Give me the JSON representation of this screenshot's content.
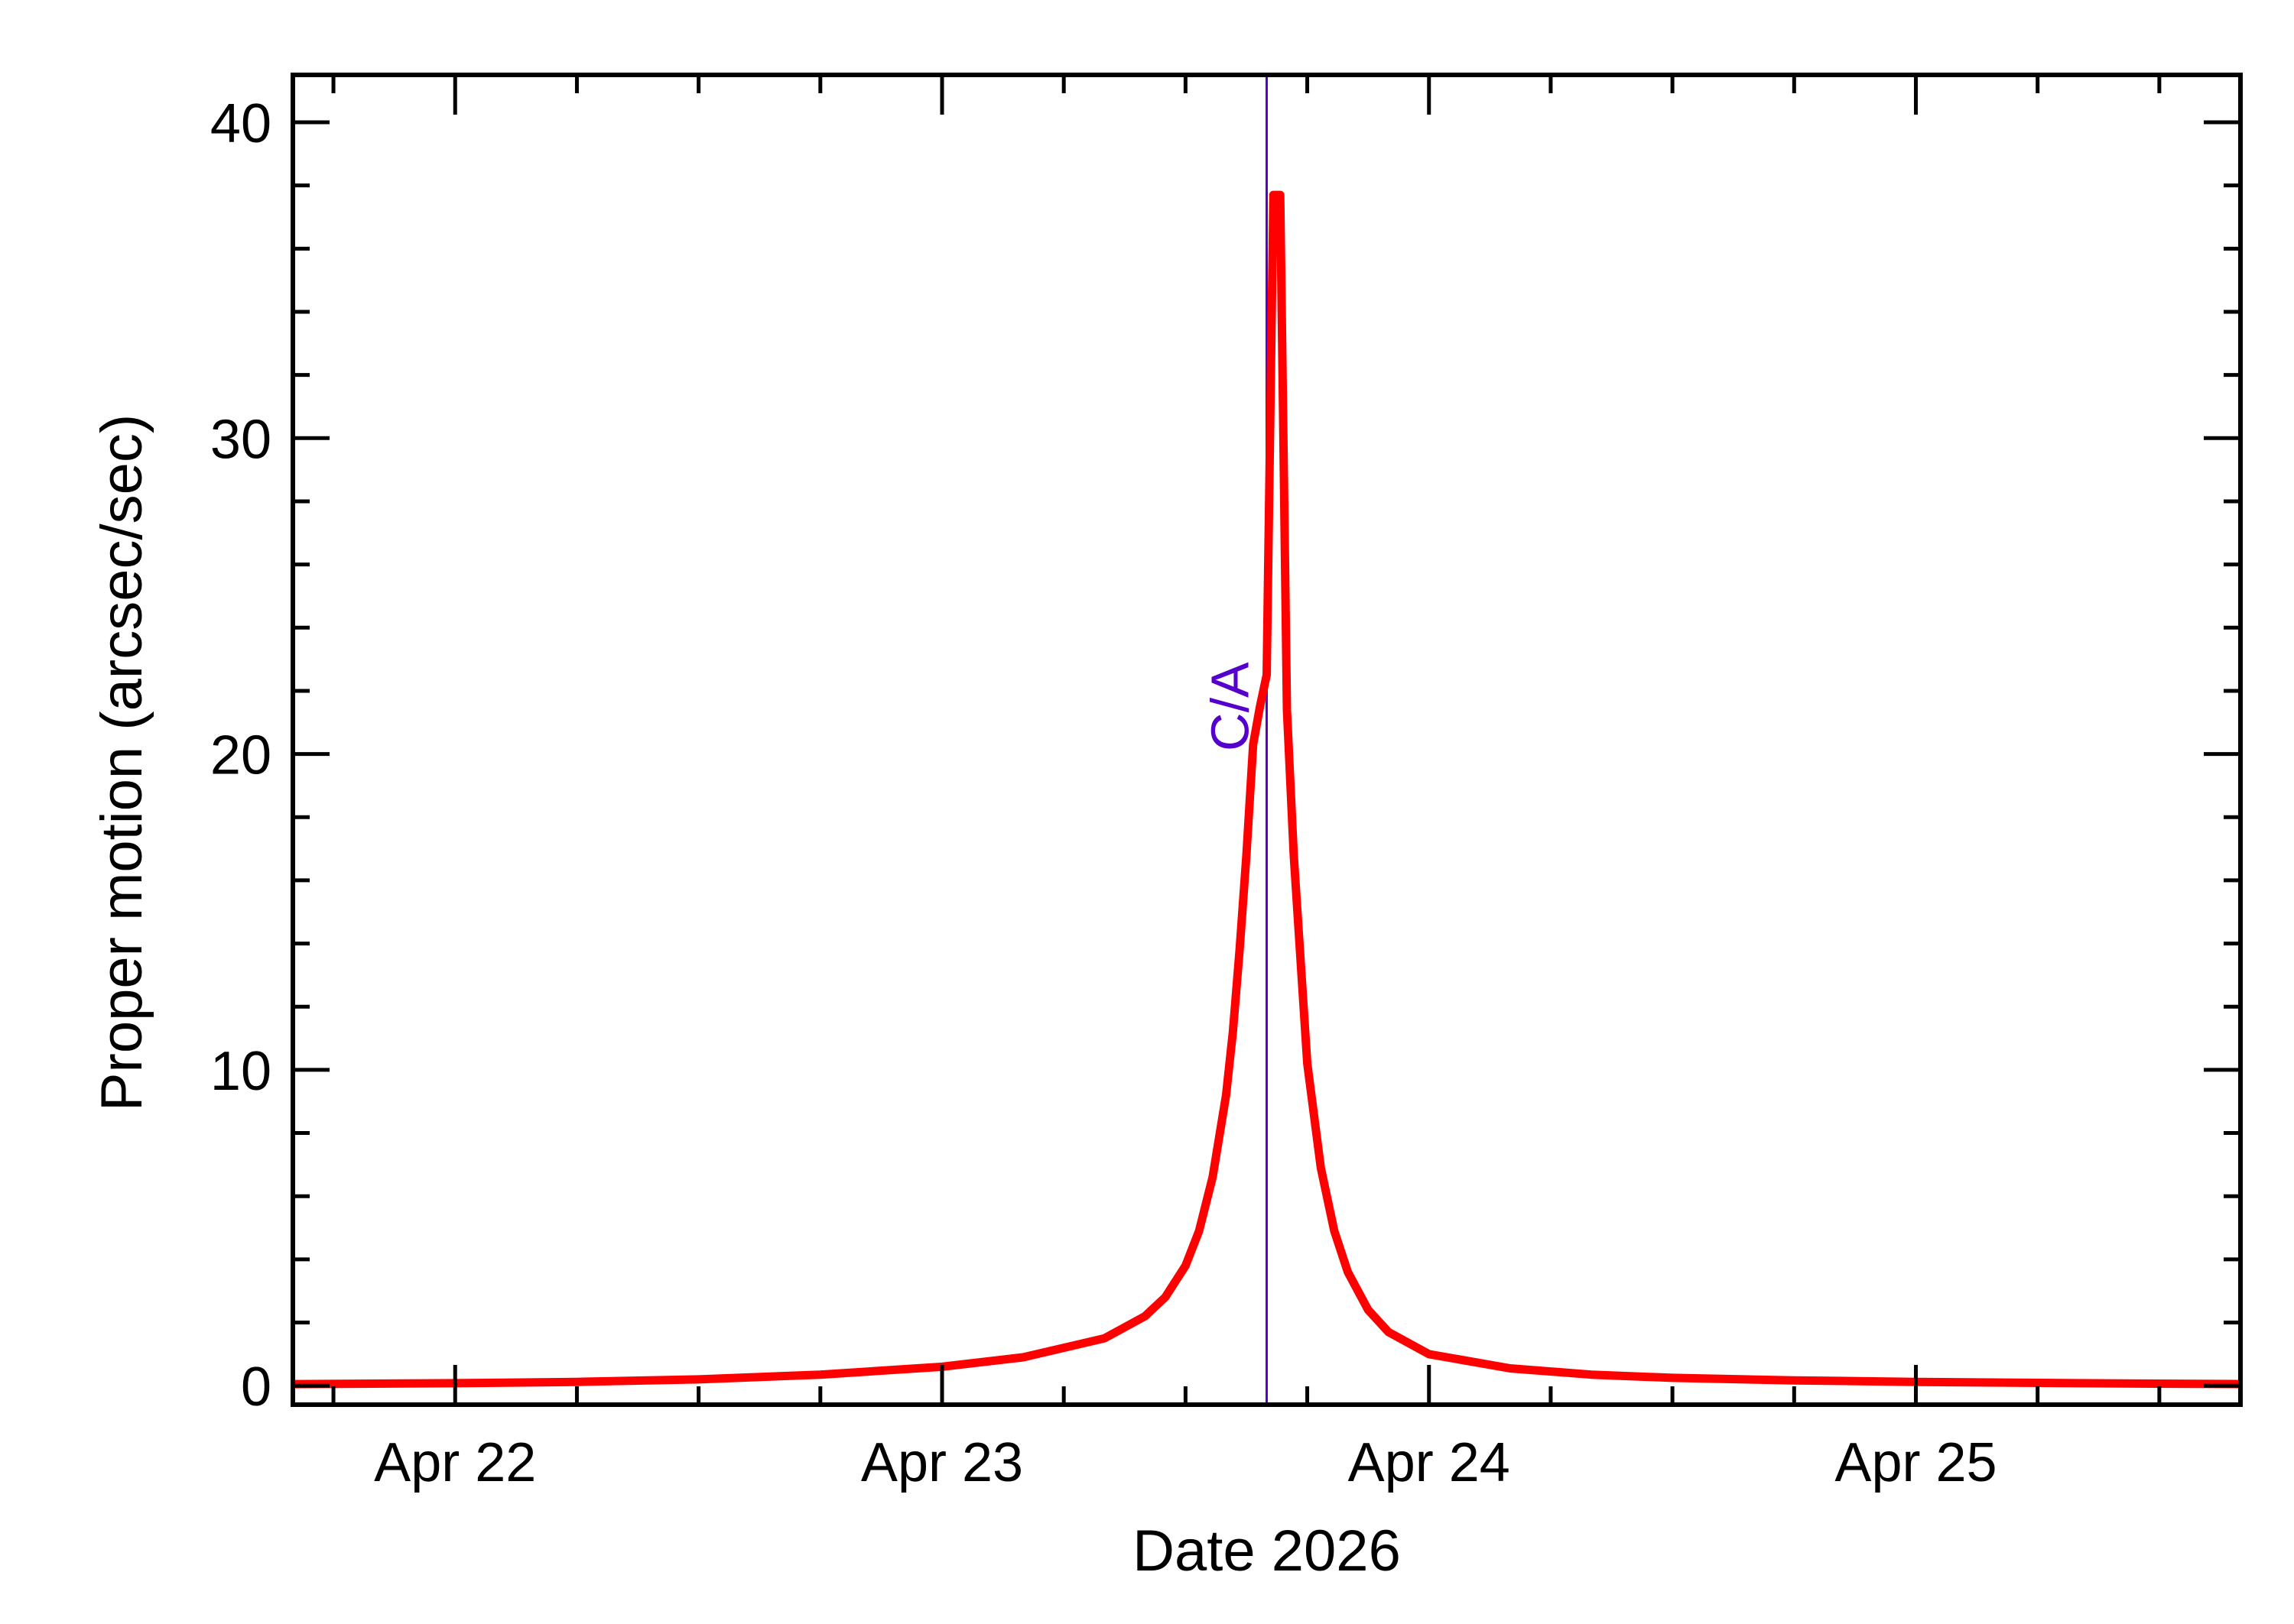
{
  "chart_data": {
    "type": "line",
    "title": "",
    "xlabel": "Date 2026",
    "ylabel": "Proper motion (arcsec/sec)",
    "x_unit": "days",
    "xlim": [
      "2026-04-21T16:00",
      "2026-04-25T16:00"
    ],
    "ylim": [
      -0.6,
      41.5
    ],
    "x_ticks": [
      {
        "value": "2026-04-22T00:00",
        "label": "Apr 22"
      },
      {
        "value": "2026-04-23T00:00",
        "label": "Apr 23"
      },
      {
        "value": "2026-04-24T00:00",
        "label": "Apr 24"
      },
      {
        "value": "2026-04-25T00:00",
        "label": "Apr 25"
      }
    ],
    "y_ticks": [
      {
        "value": 0,
        "label": "0"
      },
      {
        "value": 10,
        "label": "10"
      },
      {
        "value": 20,
        "label": "20"
      },
      {
        "value": 30,
        "label": "30"
      },
      {
        "value": 40,
        "label": "40"
      }
    ],
    "grid": false,
    "legend": "none",
    "series": [
      {
        "color": "#ff0000",
        "x": [
          "2026-04-21T16:00",
          "2026-04-22T00:00",
          "2026-04-22T06:00",
          "2026-04-22T12:00",
          "2026-04-22T18:00",
          "2026-04-23T00:00",
          "2026-04-23T04:00",
          "2026-04-23T08:00",
          "2026-04-23T10:00",
          "2026-04-23T11:00",
          "2026-04-23T12:00",
          "2026-04-23T12:40",
          "2026-04-23T13:20",
          "2026-04-23T14:00",
          "2026-04-23T14:20",
          "2026-04-23T14:40",
          "2026-04-23T15:00",
          "2026-04-23T15:20",
          "2026-04-23T15:40",
          "2026-04-23T16:00",
          "2026-04-23T16:20",
          "2026-04-23T16:40",
          "2026-04-23T17:00",
          "2026-04-23T17:20",
          "2026-04-23T18:00",
          "2026-04-23T18:40",
          "2026-04-23T19:20",
          "2026-04-23T20:00",
          "2026-04-23T21:00",
          "2026-04-23T22:00",
          "2026-04-24T00:00",
          "2026-04-24T04:00",
          "2026-04-24T08:00",
          "2026-04-24T12:00",
          "2026-04-24T18:00",
          "2026-04-25T00:00",
          "2026-04-25T08:00",
          "2026-04-25T16:00"
        ],
        "values": [
          0.05,
          0.08,
          0.12,
          0.2,
          0.35,
          0.6,
          0.9,
          1.5,
          2.2,
          2.8,
          3.8,
          4.9,
          6.6,
          9.2,
          11.2,
          13.8,
          16.8,
          20.3,
          21.5,
          22.5,
          37.7,
          37.7,
          21.4,
          16.8,
          10.2,
          6.9,
          4.9,
          3.6,
          2.4,
          1.7,
          1.0,
          0.55,
          0.35,
          0.25,
          0.17,
          0.12,
          0.08,
          0.05
        ]
      }
    ],
    "annotations": [
      {
        "type": "vline",
        "x": "2026-04-23T16:00",
        "label": "C/A",
        "color": "#5500cc"
      }
    ]
  }
}
